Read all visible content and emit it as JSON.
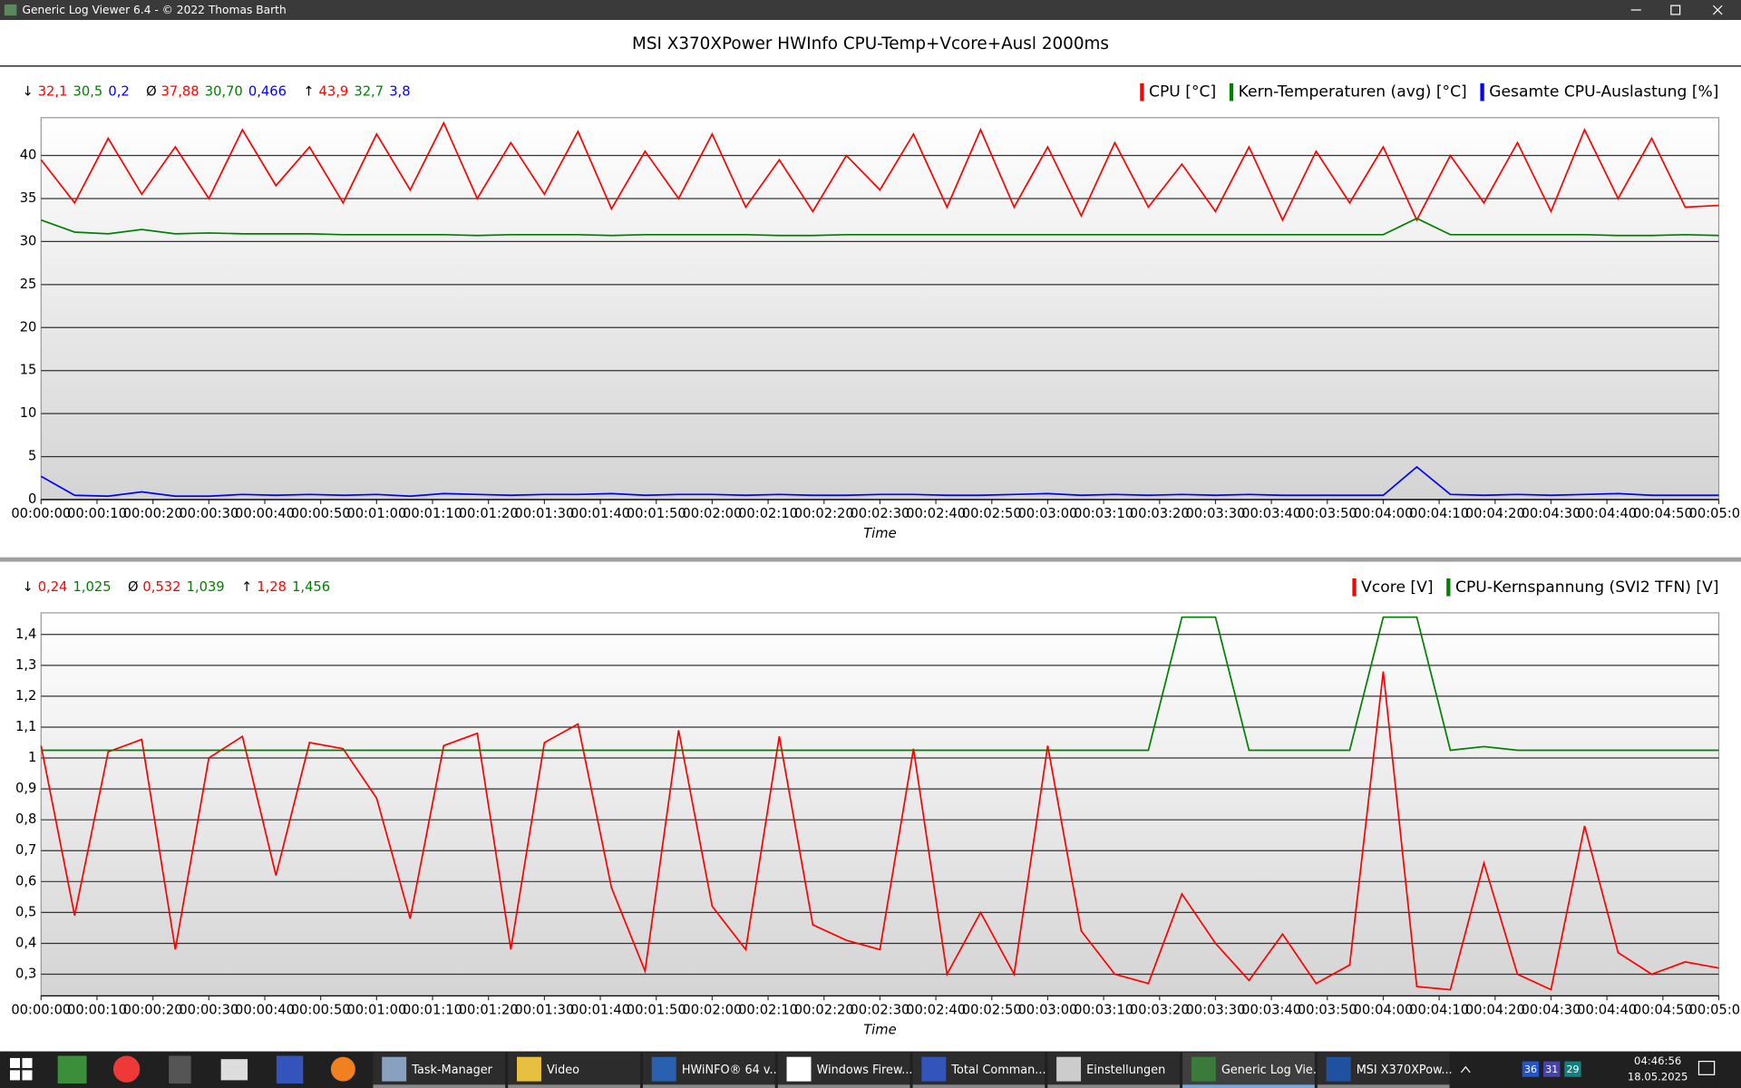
{
  "window": {
    "title": "Generic Log Viewer 6.4 - © 2022 Thomas Barth",
    "heading": "MSI X370XPower HWInfo CPU-Temp+Vcore+Ausl 2000ms"
  },
  "chart_data": [
    {
      "type": "line",
      "x_label": "Time",
      "stats": [
        {
          "symbol": "↓",
          "values": [
            "32,1",
            "30,5",
            "0,2"
          ]
        },
        {
          "symbol": "Ø",
          "values": [
            "37,88",
            "30,70",
            "0,466"
          ]
        },
        {
          "symbol": "↑",
          "values": [
            "43,9",
            "32,7",
            "3,8"
          ]
        }
      ],
      "x": [
        0,
        6,
        12,
        18,
        24,
        30,
        36,
        42,
        48,
        54,
        60,
        66,
        72,
        78,
        84,
        90,
        96,
        102,
        108,
        114,
        120,
        126,
        132,
        138,
        144,
        150,
        156,
        162,
        168,
        174,
        180,
        186,
        192,
        198,
        204,
        210,
        216,
        222,
        228,
        234,
        240,
        246,
        252,
        258,
        264,
        270,
        276,
        282,
        288,
        294,
        300
      ],
      "xlim": [
        0,
        300
      ],
      "xticks": [
        {
          "value": 0,
          "label": "00:00:00"
        },
        {
          "value": 10,
          "label": "00:00:10"
        },
        {
          "value": 20,
          "label": "00:00:20"
        },
        {
          "value": 30,
          "label": "00:00:30"
        },
        {
          "value": 40,
          "label": "00:00:40"
        },
        {
          "value": 50,
          "label": "00:00:50"
        },
        {
          "value": 60,
          "label": "00:01:00"
        },
        {
          "value": 70,
          "label": "00:01:10"
        },
        {
          "value": 80,
          "label": "00:01:20"
        },
        {
          "value": 90,
          "label": "00:01:30"
        },
        {
          "value": 100,
          "label": "00:01:40"
        },
        {
          "value": 110,
          "label": "00:01:50"
        },
        {
          "value": 120,
          "label": "00:02:00"
        },
        {
          "value": 130,
          "label": "00:02:10"
        },
        {
          "value": 140,
          "label": "00:02:20"
        },
        {
          "value": 150,
          "label": "00:02:30"
        },
        {
          "value": 160,
          "label": "00:02:40"
        },
        {
          "value": 170,
          "label": "00:02:50"
        },
        {
          "value": 180,
          "label": "00:03:00"
        },
        {
          "value": 190,
          "label": "00:03:10"
        },
        {
          "value": 200,
          "label": "00:03:20"
        },
        {
          "value": 210,
          "label": "00:03:30"
        },
        {
          "value": 220,
          "label": "00:03:40"
        },
        {
          "value": 230,
          "label": "00:03:50"
        },
        {
          "value": 240,
          "label": "00:04:00"
        },
        {
          "value": 250,
          "label": "00:04:10"
        },
        {
          "value": 260,
          "label": "00:04:20"
        },
        {
          "value": 270,
          "label": "00:04:30"
        },
        {
          "value": 280,
          "label": "00:04:40"
        },
        {
          "value": 290,
          "label": "00:04:50"
        },
        {
          "value": 300,
          "label": "00:05:00"
        }
      ],
      "ylim": [
        0,
        44.4
      ],
      "yticks": [
        0,
        5,
        10,
        15,
        20,
        25,
        30,
        35,
        40
      ],
      "grid": true,
      "series": [
        {
          "name": "CPU [°C]",
          "color": "#ff0000",
          "values": [
            39.5,
            34.5,
            42,
            35.5,
            41,
            35,
            43,
            36.5,
            41,
            34.5,
            42.5,
            36,
            43.8,
            35,
            41.5,
            35.5,
            42.8,
            33.8,
            40.5,
            35,
            42.5,
            34,
            39.5,
            33.5,
            40,
            36,
            42.5,
            34,
            43,
            34,
            41,
            33,
            41.5,
            34,
            39,
            33.5,
            41,
            32.5,
            40.5,
            34.5,
            41,
            32.5,
            40,
            34.5,
            41.5,
            33.5,
            43,
            35,
            42,
            34,
            34.2
          ]
        },
        {
          "name": "Kern-Temperaturen (avg) [°C]",
          "color": "#008000",
          "values": [
            32.5,
            31.1,
            30.9,
            31.4,
            30.9,
            31,
            30.9,
            30.9,
            30.9,
            30.8,
            30.8,
            30.8,
            30.8,
            30.7,
            30.8,
            30.8,
            30.8,
            30.7,
            30.8,
            30.8,
            30.8,
            30.8,
            30.7,
            30.7,
            30.8,
            30.8,
            30.8,
            30.8,
            30.8,
            30.8,
            30.8,
            30.8,
            30.8,
            30.8,
            30.8,
            30.8,
            30.8,
            30.8,
            30.8,
            30.8,
            30.8,
            32.7,
            30.8,
            30.8,
            30.8,
            30.8,
            30.8,
            30.7,
            30.7,
            30.8,
            30.7
          ]
        },
        {
          "name": "Gesamte CPU-Auslastung [%]",
          "color": "#0000ff",
          "values": [
            2.7,
            0.5,
            0.4,
            0.9,
            0.4,
            0.4,
            0.6,
            0.5,
            0.6,
            0.5,
            0.6,
            0.4,
            0.7,
            0.6,
            0.5,
            0.6,
            0.6,
            0.7,
            0.5,
            0.6,
            0.6,
            0.5,
            0.6,
            0.5,
            0.5,
            0.6,
            0.6,
            0.5,
            0.5,
            0.6,
            0.7,
            0.5,
            0.6,
            0.5,
            0.6,
            0.5,
            0.6,
            0.5,
            0.5,
            0.5,
            0.5,
            3.8,
            0.6,
            0.5,
            0.6,
            0.5,
            0.6,
            0.7,
            0.5,
            0.5,
            0.5
          ]
        }
      ]
    },
    {
      "type": "line",
      "x_label": "Time",
      "stats": [
        {
          "symbol": "↓",
          "values": [
            "0,24",
            "1,025"
          ]
        },
        {
          "symbol": "Ø",
          "values": [
            "0,532",
            "1,039"
          ]
        },
        {
          "symbol": "↑",
          "values": [
            "1,28",
            "1,456"
          ]
        }
      ],
      "x": [
        0,
        6,
        12,
        18,
        24,
        30,
        36,
        42,
        48,
        54,
        60,
        66,
        72,
        78,
        84,
        90,
        96,
        102,
        108,
        114,
        120,
        126,
        132,
        138,
        144,
        150,
        156,
        162,
        168,
        174,
        180,
        186,
        192,
        198,
        204,
        210,
        216,
        222,
        228,
        234,
        240,
        246,
        252,
        258,
        264,
        270,
        276,
        282,
        288,
        294,
        300
      ],
      "xlim": [
        0,
        300
      ],
      "xticks": [
        {
          "value": 0,
          "label": "00:00:00"
        },
        {
          "value": 10,
          "label": "00:00:10"
        },
        {
          "value": 20,
          "label": "00:00:20"
        },
        {
          "value": 30,
          "label": "00:00:30"
        },
        {
          "value": 40,
          "label": "00:00:40"
        },
        {
          "value": 50,
          "label": "00:00:50"
        },
        {
          "value": 60,
          "label": "00:01:00"
        },
        {
          "value": 70,
          "label": "00:01:10"
        },
        {
          "value": 80,
          "label": "00:01:20"
        },
        {
          "value": 90,
          "label": "00:01:30"
        },
        {
          "value": 100,
          "label": "00:01:40"
        },
        {
          "value": 110,
          "label": "00:01:50"
        },
        {
          "value": 120,
          "label": "00:02:00"
        },
        {
          "value": 130,
          "label": "00:02:10"
        },
        {
          "value": 140,
          "label": "00:02:20"
        },
        {
          "value": 150,
          "label": "00:02:30"
        },
        {
          "value": 160,
          "label": "00:02:40"
        },
        {
          "value": 170,
          "label": "00:02:50"
        },
        {
          "value": 180,
          "label": "00:03:00"
        },
        {
          "value": 190,
          "label": "00:03:10"
        },
        {
          "value": 200,
          "label": "00:03:20"
        },
        {
          "value": 210,
          "label": "00:03:30"
        },
        {
          "value": 220,
          "label": "00:03:40"
        },
        {
          "value": 230,
          "label": "00:03:50"
        },
        {
          "value": 240,
          "label": "00:04:00"
        },
        {
          "value": 250,
          "label": "00:04:10"
        },
        {
          "value": 260,
          "label": "00:04:20"
        },
        {
          "value": 270,
          "label": "00:04:30"
        },
        {
          "value": 280,
          "label": "00:04:40"
        },
        {
          "value": 290,
          "label": "00:04:50"
        },
        {
          "value": 300,
          "label": "00:05:00"
        }
      ],
      "ylim": [
        0.23,
        1.47
      ],
      "yticks": [
        {
          "value": 0.3,
          "label": "0,3"
        },
        {
          "value": 0.4,
          "label": "0,4"
        },
        {
          "value": 0.5,
          "label": "0,5"
        },
        {
          "value": 0.6,
          "label": "0,6"
        },
        {
          "value": 0.7,
          "label": "0,7"
        },
        {
          "value": 0.8,
          "label": "0,8"
        },
        {
          "value": 0.9,
          "label": "0,9"
        },
        1,
        {
          "value": 1.1,
          "label": "1,1"
        },
        {
          "value": 1.2,
          "label": "1,2"
        },
        {
          "value": 1.3,
          "label": "1,3"
        },
        {
          "value": 1.4,
          "label": "1,4"
        }
      ],
      "grid": true,
      "series": [
        {
          "name": "Vcore [V]",
          "color": "#ff0000",
          "values": [
            1.04,
            0.49,
            1.02,
            1.06,
            0.38,
            1.0,
            1.07,
            0.62,
            1.05,
            1.03,
            0.87,
            0.48,
            1.04,
            1.08,
            0.38,
            1.05,
            1.11,
            0.58,
            0.31,
            1.09,
            0.52,
            0.38,
            1.07,
            0.46,
            0.41,
            0.38,
            1.03,
            0.3,
            0.5,
            0.3,
            1.04,
            0.44,
            0.3,
            0.27,
            0.56,
            0.4,
            0.28,
            0.43,
            0.27,
            0.33,
            1.28,
            0.26,
            0.25,
            0.66,
            0.3,
            0.25,
            0.78,
            0.37,
            0.3,
            0.34,
            0.32
          ]
        },
        {
          "name": "CPU-Kernspannung (SVI2 TFN) [V]",
          "color": "#008000",
          "values": [
            1.025,
            1.025,
            1.025,
            1.025,
            1.025,
            1.025,
            1.025,
            1.025,
            1.025,
            1.025,
            1.025,
            1.025,
            1.025,
            1.025,
            1.025,
            1.025,
            1.025,
            1.025,
            1.025,
            1.025,
            1.025,
            1.025,
            1.025,
            1.025,
            1.025,
            1.025,
            1.025,
            1.025,
            1.025,
            1.025,
            1.025,
            1.025,
            1.025,
            1.025,
            1.456,
            1.456,
            1.025,
            1.025,
            1.025,
            1.025,
            1.456,
            1.456,
            1.025,
            1.037,
            1.025,
            1.025,
            1.025,
            1.025,
            1.025,
            1.025,
            1.025
          ]
        }
      ]
    }
  ],
  "taskbar": {
    "apps": [
      "Task-Manager",
      "Video",
      "HWiNFO® 64 v...",
      "Windows Firew...",
      "Total Comman...",
      "Einstellungen",
      "Generic Log Vie...",
      "MSI X370XPow..."
    ],
    "tray": [
      "36",
      "31",
      "29"
    ],
    "time": "04:46:56",
    "date": "18.05.2025"
  }
}
